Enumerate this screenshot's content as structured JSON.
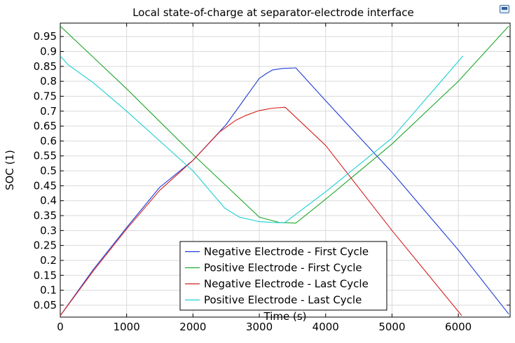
{
  "chart_data": {
    "type": "line",
    "title": "Local state-of-charge at separator-electrode interface",
    "xlabel": "Time (s)",
    "ylabel": "SOC (1)",
    "xlim": [
      0,
      6780
    ],
    "ylim": [
      0.01,
      0.995
    ],
    "x_ticks": [
      0,
      1000,
      2000,
      3000,
      4000,
      5000,
      6000
    ],
    "y_ticks": [
      0.05,
      0.1,
      0.15,
      0.2,
      0.25,
      0.3,
      0.35,
      0.4,
      0.45,
      0.5,
      0.55,
      0.6,
      0.65,
      0.7,
      0.75,
      0.8,
      0.85,
      0.9,
      0.95
    ],
    "x_tick_labels": [
      "0",
      "1000",
      "2000",
      "3000",
      "4000",
      "5000",
      "6000"
    ],
    "y_tick_labels": [
      "0.05",
      "0.1",
      "0.15",
      "0.2",
      "0.25",
      "0.3",
      "0.35",
      "0.4",
      "0.45",
      "0.5",
      "0.55",
      "0.6",
      "0.65",
      "0.7",
      "0.75",
      "0.8",
      "0.85",
      "0.9",
      "0.95"
    ],
    "grid": true,
    "legend_position": "bottom-center",
    "series": [
      {
        "name": "Negative Electrode - First Cycle",
        "color": "#1f3bd6",
        "points": [
          [
            0,
            0.015
          ],
          [
            500,
            0.17
          ],
          [
            1000,
            0.31
          ],
          [
            1500,
            0.445
          ],
          [
            2000,
            0.535
          ],
          [
            2500,
            0.655
          ],
          [
            3000,
            0.81
          ],
          [
            3100,
            0.825
          ],
          [
            3200,
            0.838
          ],
          [
            3350,
            0.843
          ],
          [
            3550,
            0.845
          ],
          [
            4000,
            0.735
          ],
          [
            5000,
            0.495
          ],
          [
            6000,
            0.235
          ],
          [
            6760,
            0.02
          ]
        ]
      },
      {
        "name": "Positive Electrode - First Cycle",
        "color": "#1fa82b",
        "points": [
          [
            0,
            0.985
          ],
          [
            500,
            0.88
          ],
          [
            1000,
            0.775
          ],
          [
            1500,
            0.665
          ],
          [
            2000,
            0.555
          ],
          [
            2500,
            0.45
          ],
          [
            3000,
            0.345
          ],
          [
            3300,
            0.327
          ],
          [
            3550,
            0.325
          ],
          [
            4000,
            0.405
          ],
          [
            5000,
            0.59
          ],
          [
            6000,
            0.8
          ],
          [
            6760,
            0.985
          ]
        ]
      },
      {
        "name": "Negative Electrode - Last Cycle",
        "color": "#d42020",
        "points": [
          [
            0,
            0.015
          ],
          [
            500,
            0.165
          ],
          [
            1000,
            0.305
          ],
          [
            1500,
            0.435
          ],
          [
            2000,
            0.535
          ],
          [
            2400,
            0.63
          ],
          [
            2650,
            0.67
          ],
          [
            2800,
            0.686
          ],
          [
            3000,
            0.702
          ],
          [
            3200,
            0.71
          ],
          [
            3390,
            0.713
          ],
          [
            4000,
            0.585
          ],
          [
            5000,
            0.3
          ],
          [
            6050,
            0.015
          ]
        ]
      },
      {
        "name": "Positive Electrode - Last Cycle",
        "color": "#1ccfd2",
        "points": [
          [
            0,
            0.885
          ],
          [
            120,
            0.855
          ],
          [
            500,
            0.795
          ],
          [
            1000,
            0.7
          ],
          [
            1500,
            0.6
          ],
          [
            2000,
            0.5
          ],
          [
            2480,
            0.375
          ],
          [
            2700,
            0.345
          ],
          [
            3000,
            0.33
          ],
          [
            3200,
            0.327
          ],
          [
            3380,
            0.326
          ],
          [
            4000,
            0.43
          ],
          [
            5000,
            0.61
          ],
          [
            6070,
            0.885
          ]
        ]
      }
    ]
  },
  "toolbar": {
    "export_icon": "export-image-icon"
  }
}
